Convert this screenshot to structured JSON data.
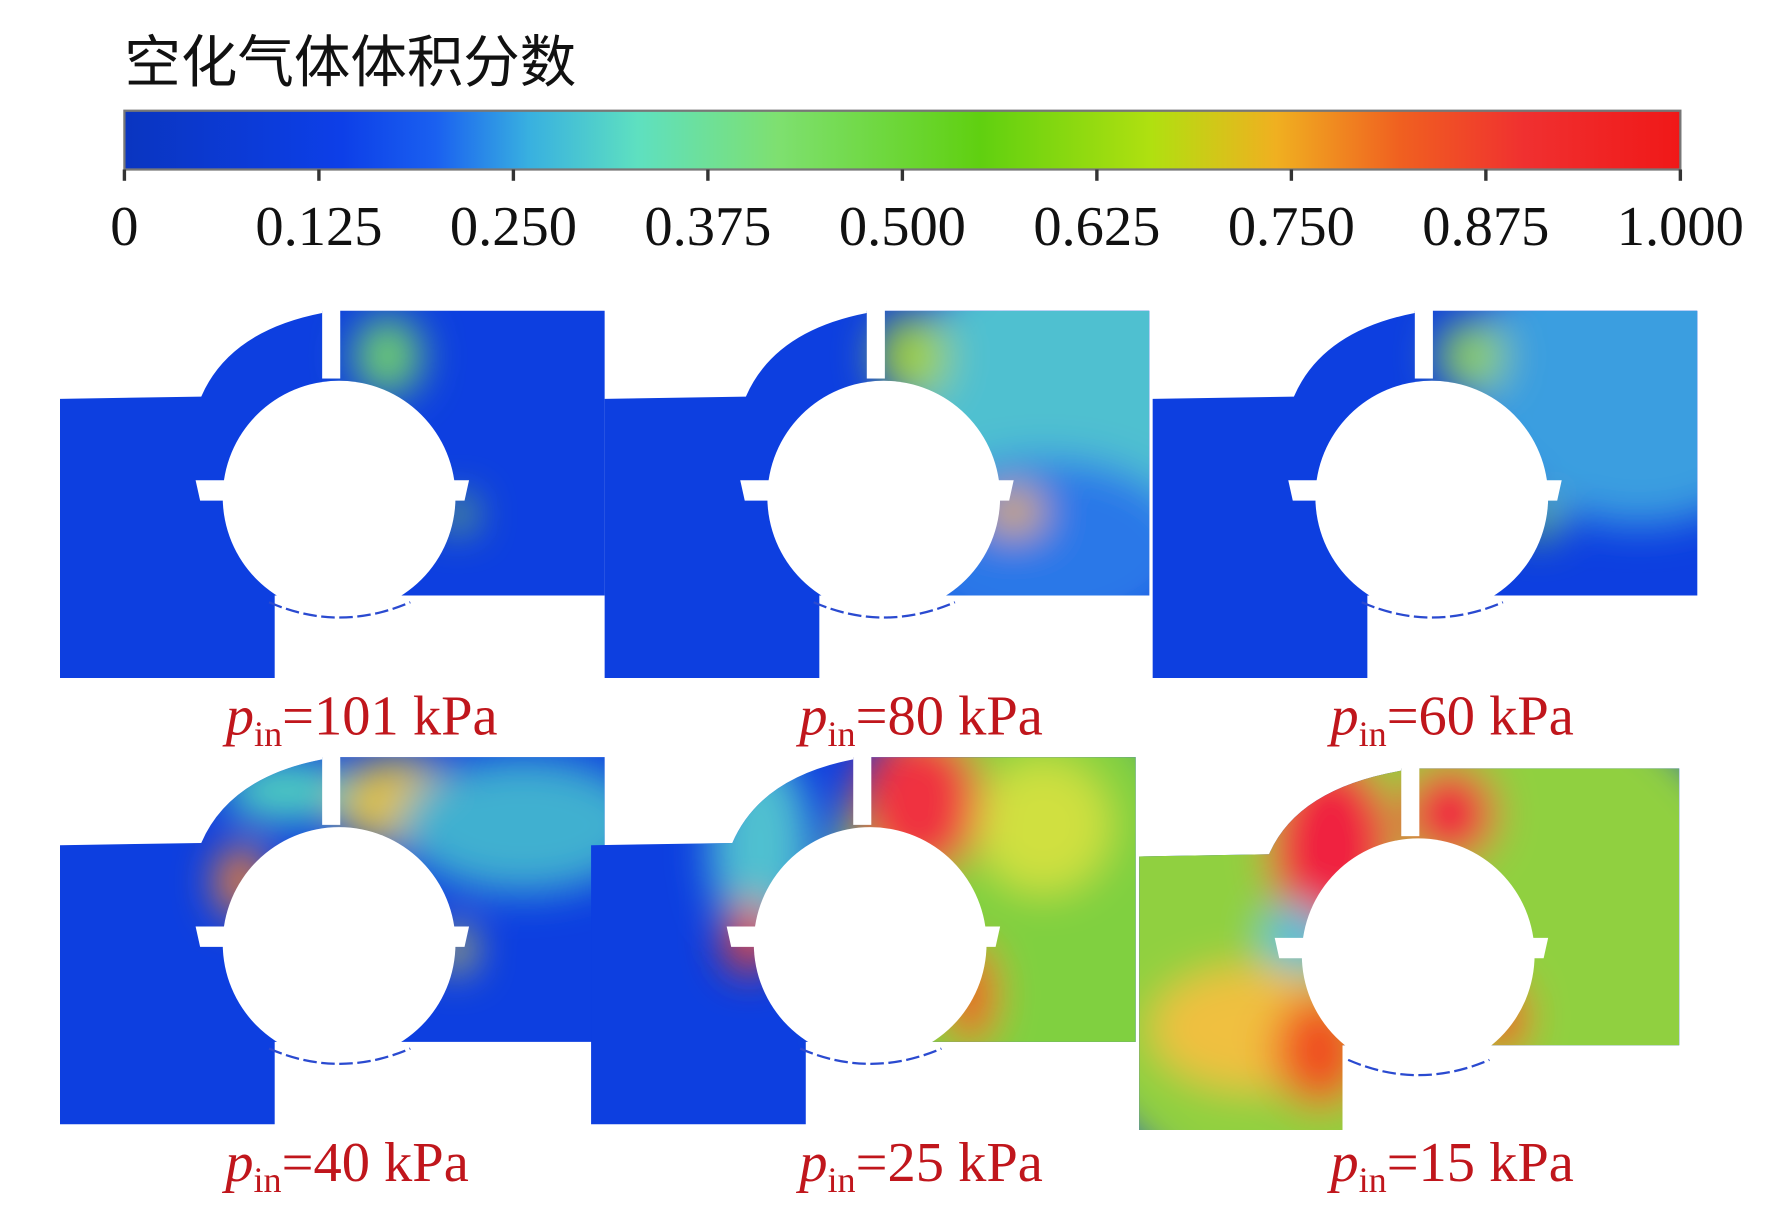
{
  "colorbar": {
    "title": "空化气体体积分数",
    "ticks": [
      0,
      0.125,
      {
        "value": 0.25,
        "label": "0.250"
      },
      0.375,
      {
        "value": 0.5,
        "label": "0.500"
      },
      0.625,
      {
        "value": 0.75,
        "label": "0.750"
      },
      0.875,
      {
        "value": 1,
        "label": "1.000"
      }
    ]
  },
  "panels": [
    {
      "symbol": "p",
      "subscript": "in",
      "text": "=101 kPa"
    },
    {
      "symbol": "p",
      "subscript": "in",
      "text": "=80 kPa"
    },
    {
      "symbol": "p",
      "subscript": "in",
      "text": "=60 kPa"
    },
    {
      "symbol": "p",
      "subscript": "in",
      "text": "=40 kPa"
    },
    {
      "symbol": "p",
      "subscript": "in",
      "text": "=25 kPa"
    },
    {
      "symbol": "p",
      "subscript": "in",
      "text": "=15 kPa"
    }
  ]
}
